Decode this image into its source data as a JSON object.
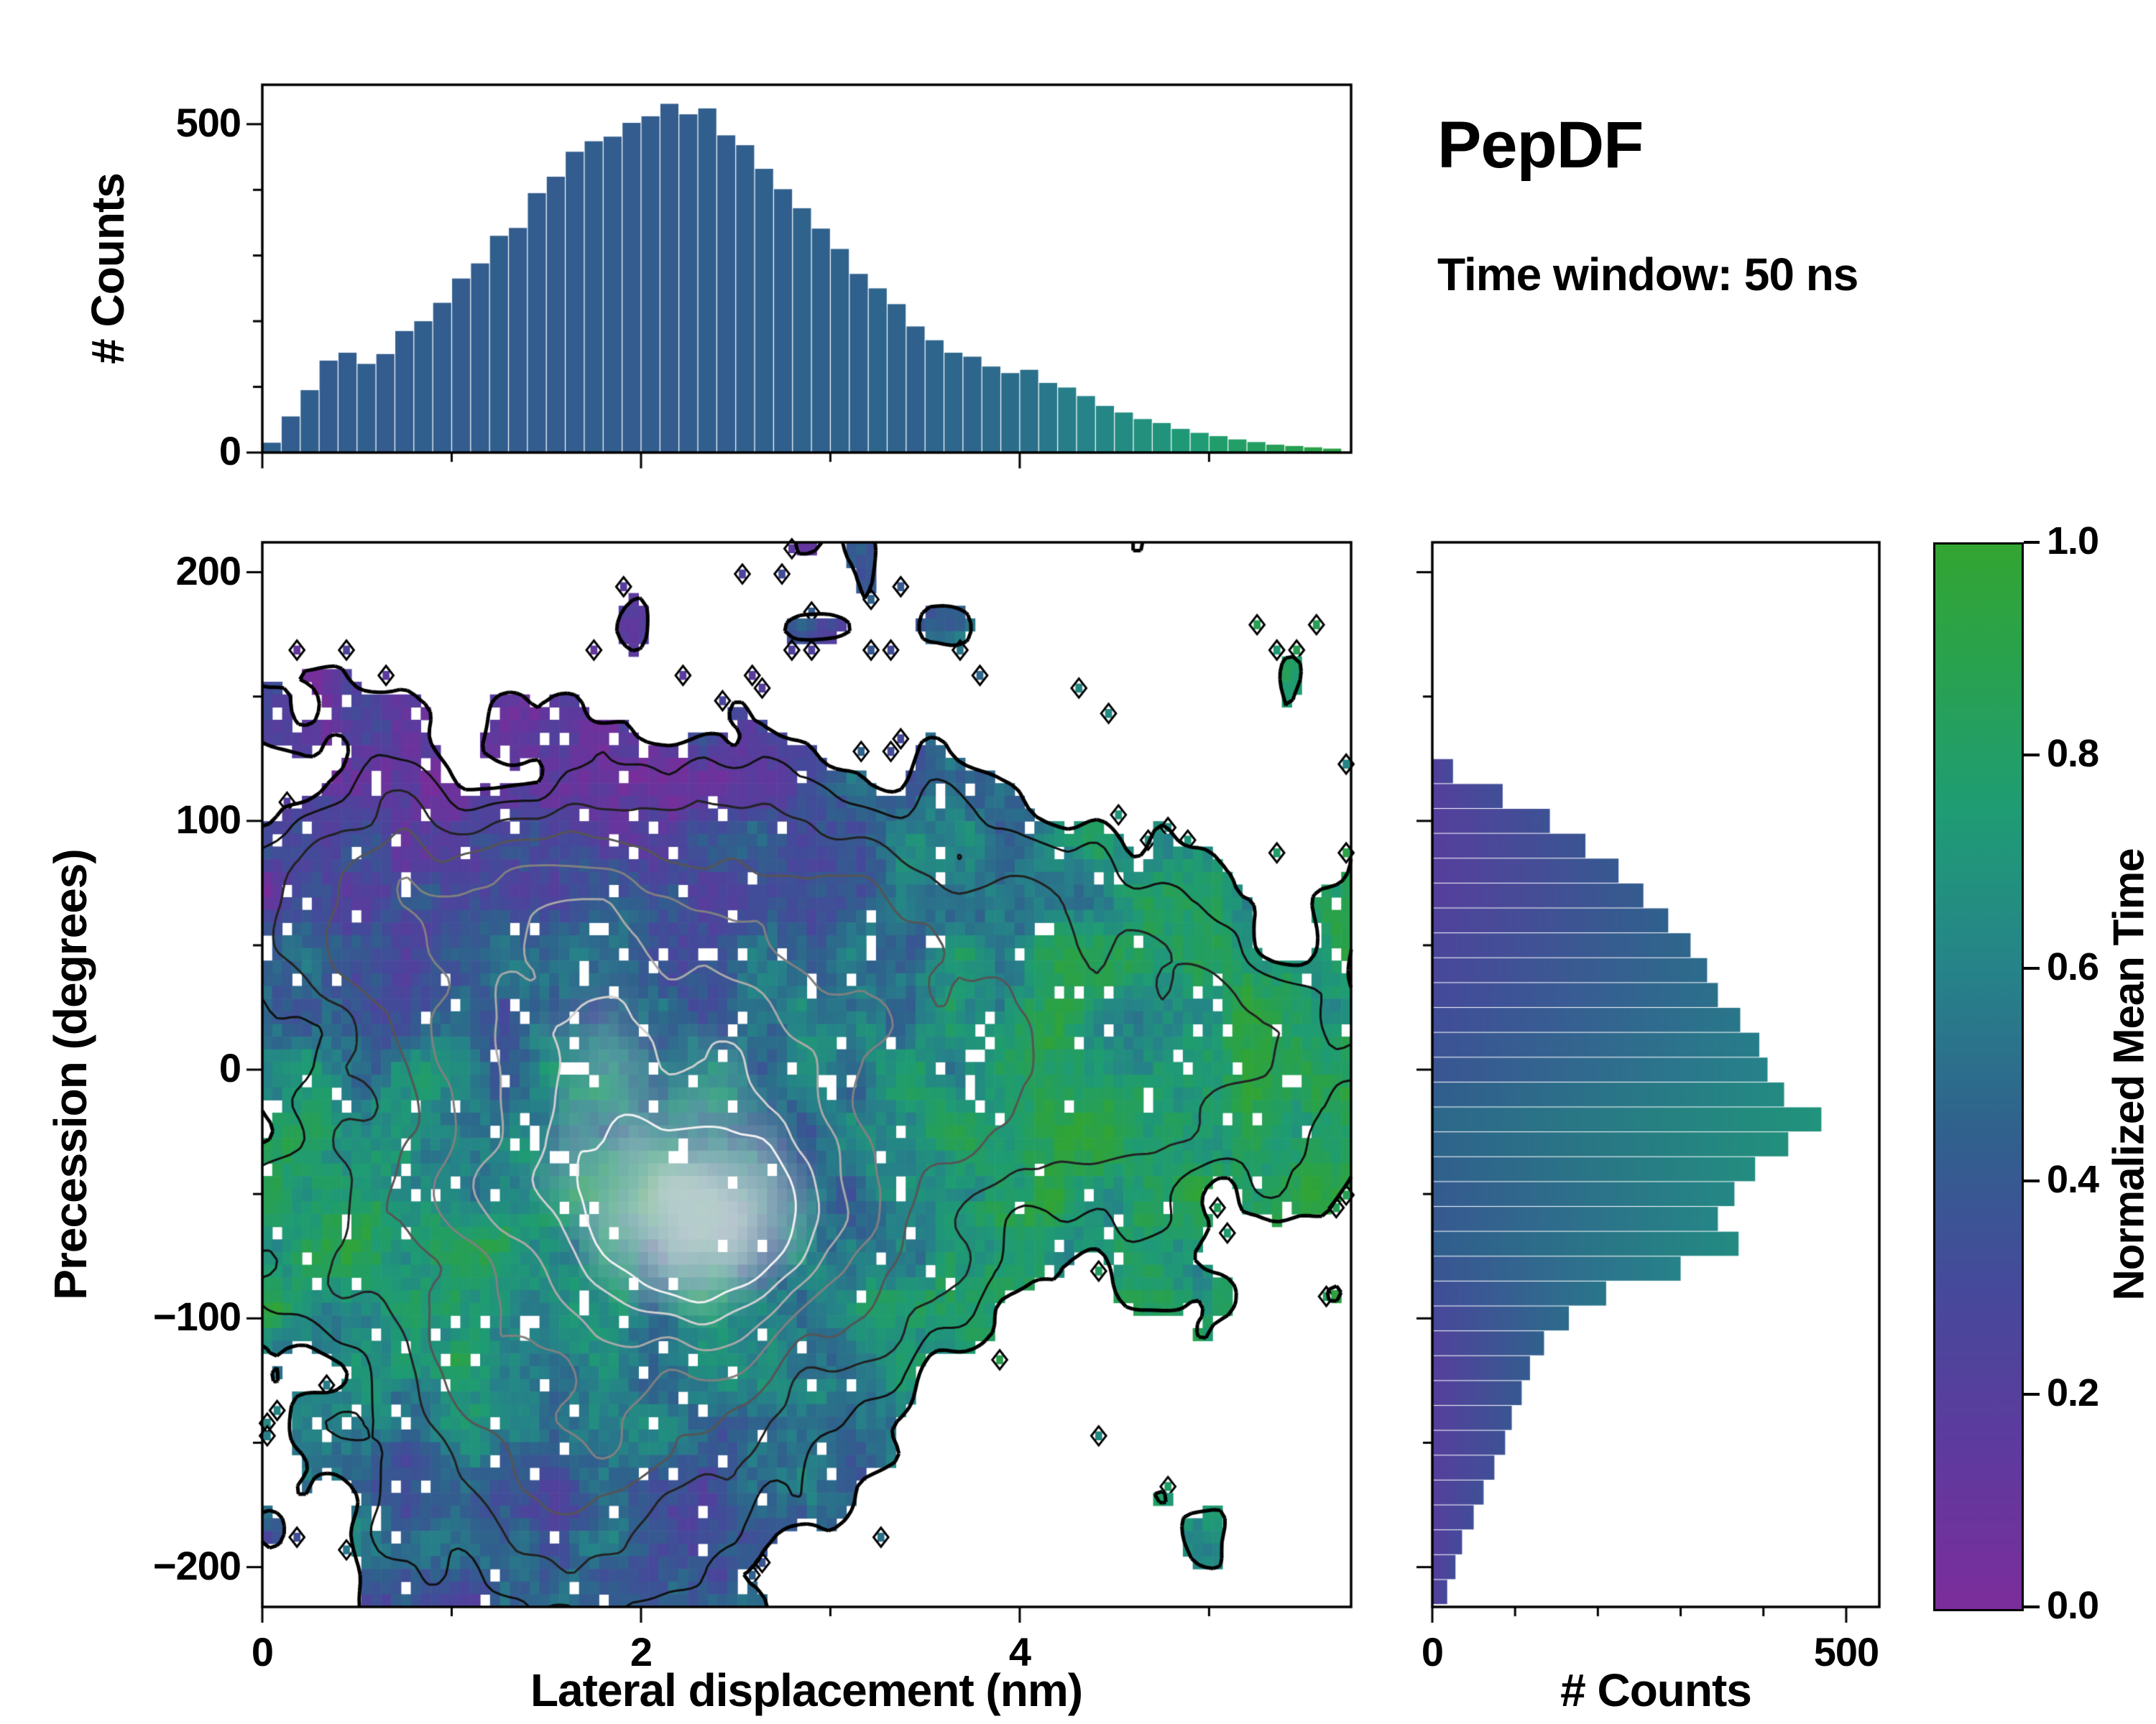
{
  "chart_data": {
    "type": "heatmap",
    "title": "PepDF",
    "subtitle": "Time window: 50 ns",
    "labels": {
      "xlabel": "Lateral displacement (nm)",
      "ylabel": "Precession (degrees)",
      "top_ylabel": "# Counts",
      "right_xlabel": "# Counts",
      "colorbar_label": "Normalized Mean Time"
    },
    "x_range": [
      0,
      5.75
    ],
    "y_range": [
      -216,
      212
    ],
    "axes": {
      "x_ticks": [
        {
          "v": 0,
          "label": "0"
        },
        {
          "v": 2,
          "label": "2"
        },
        {
          "v": 4,
          "label": "4"
        }
      ],
      "x_minor": [
        1,
        3,
        5
      ],
      "y_ticks": [
        {
          "v": 200,
          "label": "200"
        },
        {
          "v": 100,
          "label": "100"
        },
        {
          "v": 0,
          "label": "0"
        },
        {
          "v": -100,
          "label": "−100"
        },
        {
          "v": -200,
          "label": "−200"
        }
      ],
      "y_minor": [
        150,
        50,
        -50,
        -150
      ],
      "top_y_range": [
        0,
        560
      ],
      "top_y_ticks": [
        {
          "v": 0,
          "label": "0"
        },
        {
          "v": 500,
          "label": "500"
        }
      ],
      "top_y_minor": [
        100,
        200,
        300,
        400
      ],
      "right_x_range": [
        0,
        540
      ],
      "right_x_ticks": [
        {
          "v": 0,
          "label": "0"
        },
        {
          "v": 500,
          "label": "500"
        }
      ],
      "right_x_minor": [
        100,
        200,
        300,
        400
      ],
      "colorbar_ticks": [
        {
          "v": 0,
          "label": "0.0"
        },
        {
          "v": 0.2,
          "label": "0.2"
        },
        {
          "v": 0.4,
          "label": "0.4"
        },
        {
          "v": 0.6,
          "label": "0.6"
        },
        {
          "v": 0.8,
          "label": "0.8"
        },
        {
          "v": 1,
          "label": "1.0"
        }
      ]
    },
    "colormap": {
      "stops": [
        [
          0.0,
          "#7b2d9b"
        ],
        [
          0.15,
          "#5e3a9e"
        ],
        [
          0.3,
          "#46499b"
        ],
        [
          0.45,
          "#30618d"
        ],
        [
          0.6,
          "#268389"
        ],
        [
          0.75,
          "#1f9c74"
        ],
        [
          0.9,
          "#2aa24b"
        ],
        [
          1.0,
          "#33a532"
        ]
      ]
    },
    "top_hist": {
      "bin_start": 0,
      "bin_width": 0.1,
      "counts": [
        15,
        55,
        95,
        140,
        152,
        135,
        150,
        185,
        200,
        228,
        265,
        288,
        330,
        342,
        395,
        420,
        458,
        474,
        481,
        502,
        512,
        531,
        515,
        524,
        483,
        468,
        432,
        401,
        372,
        341,
        310,
        272,
        250,
        226,
        192,
        171,
        152,
        146,
        131,
        121,
        126,
        106,
        99,
        86,
        71,
        61,
        51,
        45,
        36,
        30,
        25,
        20,
        16,
        12,
        10,
        8,
        6
      ],
      "mean_time_values": [
        0.45,
        0.43,
        0.44,
        0.42,
        0.43,
        0.44,
        0.42,
        0.43,
        0.44,
        0.43,
        0.42,
        0.43,
        0.44,
        0.42,
        0.43,
        0.42,
        0.43,
        0.44,
        0.43,
        0.42,
        0.43,
        0.42,
        0.43,
        0.44,
        0.43,
        0.44,
        0.45,
        0.44,
        0.46,
        0.45,
        0.46,
        0.45,
        0.47,
        0.46,
        0.45,
        0.47,
        0.48,
        0.47,
        0.49,
        0.5,
        0.52,
        0.55,
        0.58,
        0.6,
        0.62,
        0.65,
        0.68,
        0.7,
        0.73,
        0.75,
        0.78,
        0.8,
        0.82,
        0.85,
        0.87,
        0.9,
        0.92
      ]
    },
    "right_hist": {
      "bin_start": -215,
      "bin_width": 10,
      "counts": [
        18,
        28,
        36,
        50,
        62,
        75,
        88,
        96,
        108,
        118,
        135,
        165,
        210,
        300,
        370,
        345,
        365,
        390,
        430,
        470,
        425,
        405,
        395,
        372,
        345,
        332,
        312,
        285,
        255,
        225,
        185,
        142,
        85,
        25,
        0,
        0,
        0,
        0,
        0,
        0,
        0,
        0,
        0
      ],
      "mean_time_values": [
        0.3,
        0.32,
        0.31,
        0.33,
        0.35,
        0.34,
        0.36,
        0.38,
        0.4,
        0.42,
        0.45,
        0.5,
        0.55,
        0.6,
        0.65,
        0.62,
        0.63,
        0.66,
        0.68,
        0.7,
        0.65,
        0.6,
        0.58,
        0.55,
        0.52,
        0.5,
        0.48,
        0.45,
        0.42,
        0.4,
        0.38,
        0.36,
        0.34,
        0.32,
        0.3,
        0.3,
        0.3,
        0.3,
        0.3,
        0.3,
        0.3,
        0.3,
        0.3
      ]
    },
    "heatmap": {
      "x_range": [
        0,
        5.75
      ],
      "y_range": [
        -216,
        212
      ],
      "cols": 110,
      "rows": 84,
      "seed": 11,
      "occupancy_threshold": 0.085,
      "speckle_fraction": 0.045,
      "isolated_fraction": 0.03,
      "noise_amp": 0.09,
      "value_noise_amp": 0.17,
      "density_components": [
        {
          "x": 2.05,
          "y": -30,
          "sx": 1.0,
          "sy": 62,
          "a": 1.0
        },
        {
          "x": 2.45,
          "y": -68,
          "sx": 0.42,
          "sy": 27,
          "a": 0.55
        },
        {
          "x": 1.6,
          "y": -150,
          "sx": 0.75,
          "sy": 48,
          "a": 0.38
        },
        {
          "x": 4.5,
          "y": 5,
          "sx": 0.85,
          "sy": 46,
          "a": 0.34
        },
        {
          "x": 0.9,
          "y": 65,
          "sx": 0.9,
          "sy": 35,
          "a": 0.3
        },
        {
          "x": 2.6,
          "y": 65,
          "sx": 1.3,
          "sy": 30,
          "a": 0.26
        }
      ],
      "value_field": {
        "base": 0.5,
        "top_purple": {
          "y0": 55,
          "ys": 22,
          "x0": 4.0,
          "xs": 0.7,
          "amp": -0.36
        },
        "left_green": {
          "y0": -75,
          "ys": 48,
          "x0": 1.9,
          "xs": 0.5,
          "amp": 0.32
        },
        "right_green": {
          "x0": 3.4,
          "xs": 0.5,
          "amp": 0.34
        },
        "bottom_blue": {
          "y0": -135,
          "ys": 28,
          "amp": -0.12
        }
      },
      "highlight": {
        "start": 0.85,
        "span": 0.55,
        "color": "#d6dadd",
        "max_mix": 0.82
      }
    },
    "contours": {
      "grid": {
        "cols": 150,
        "rows": 132
      },
      "levels": [
        {
          "v": 0.085,
          "color": "#000000",
          "w": 5
        },
        {
          "v": 0.16,
          "color": "#111111",
          "w": 3
        },
        {
          "v": 0.28,
          "color": "#222222",
          "w": 3
        },
        {
          "v": 0.42,
          "color": "#555555",
          "w": 3
        },
        {
          "v": 0.58,
          "color": "#808080",
          "w": 3
        },
        {
          "v": 0.74,
          "color": "#a8a8a8",
          "w": 3
        },
        {
          "v": 0.9,
          "color": "#cfcfcf",
          "w": 3
        },
        {
          "v": 1.05,
          "color": "#f2f2f2",
          "w": 3
        }
      ]
    }
  }
}
